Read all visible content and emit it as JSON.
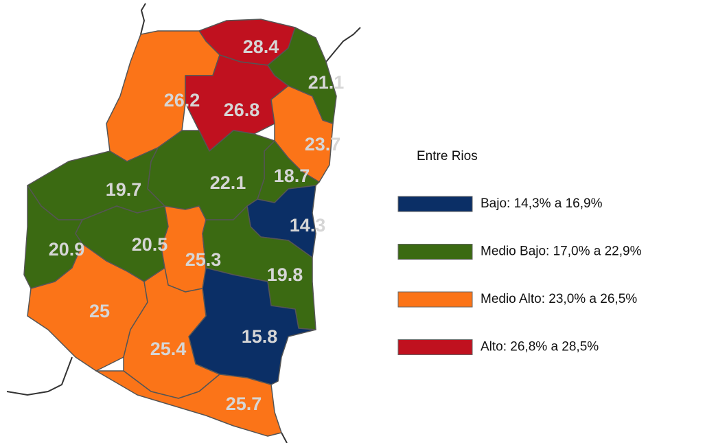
{
  "map": {
    "legend": {
      "title": "Entre Rios",
      "entries": [
        {
          "label": "Bajo: 14,3% a 16,9%",
          "color": "#0b2f66"
        },
        {
          "label": "Medio Bajo: 17,0% a 22,9%",
          "color": "#3b6a12"
        },
        {
          "label": "Medio Alto: 23,0% a 26,5%",
          "color": "#fb7418"
        },
        {
          "label": "Alto: 26,8% a 28,5%",
          "color": "#c0111f"
        }
      ]
    },
    "regions": [
      {
        "value": 28.4,
        "color": "#c0111f"
      },
      {
        "value": 21.1,
        "color": "#3b6a12"
      },
      {
        "value": 26.2,
        "color": "#fb7418"
      },
      {
        "value": 26.8,
        "color": "#c0111f"
      },
      {
        "value": 23.7,
        "color": "#fb7418"
      },
      {
        "value": 18.7,
        "color": "#3b6a12"
      },
      {
        "value": 22.1,
        "color": "#3b6a12"
      },
      {
        "value": 19.7,
        "color": "#3b6a12"
      },
      {
        "value": 14.3,
        "color": "#0b2f66"
      },
      {
        "value": 20.9,
        "color": "#3b6a12"
      },
      {
        "value": 20.5,
        "color": "#3b6a12"
      },
      {
        "value": 25.3,
        "color": "#fb7418"
      },
      {
        "value": 19.8,
        "color": "#3b6a12"
      },
      {
        "value": 25.0,
        "color": "#fb7418"
      },
      {
        "value": 15.8,
        "color": "#0b2f66"
      },
      {
        "value": 25.4,
        "color": "#fb7418"
      },
      {
        "value": 25.7,
        "color": "#fb7418"
      }
    ]
  }
}
